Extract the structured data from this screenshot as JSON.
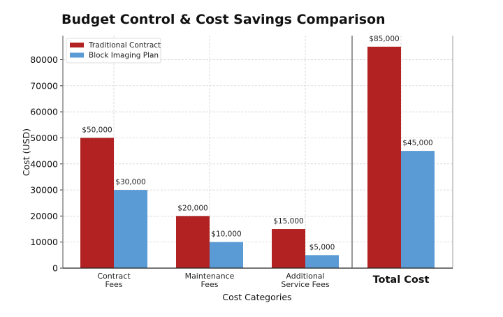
{
  "chart_data": {
    "type": "bar",
    "title": "Budget Control & Cost Savings Comparison",
    "xlabel": "Cost Categories",
    "ylabel": "Cost (USD)",
    "categories": [
      [
        "Contract",
        "Fees"
      ],
      [
        "Maintenance",
        "Fees"
      ],
      [
        "Additional",
        "Service Fees"
      ],
      [
        "Total Cost"
      ]
    ],
    "highlight_category": "Total Cost",
    "series": [
      {
        "name": "Traditional Contract",
        "color": "#b22222",
        "values": [
          50000,
          20000,
          15000,
          85000
        ],
        "labels": [
          "$50,000",
          "$20,000",
          "$15,000",
          "$85,000"
        ]
      },
      {
        "name": "Block Imaging Plan",
        "color": "#5b9bd5",
        "values": [
          30000,
          10000,
          5000,
          45000
        ],
        "labels": [
          "$30,000",
          "$10,000",
          "$5,000",
          "$45,000"
        ]
      }
    ],
    "yticks": [
      "0",
      "10000",
      "20000",
      "30000",
      "40000",
      "50000",
      "60000",
      "70000",
      "80000"
    ],
    "ylim": [
      0,
      89250
    ],
    "grid": true,
    "legend": "top-left"
  }
}
